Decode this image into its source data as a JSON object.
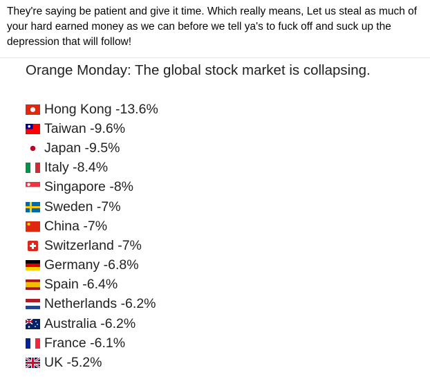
{
  "post": {
    "text": "They're saying be patient and give it time. Which really means, Let us steal as much of your hard earned money as we can before we tell ya's to fuck off and suck up the depression that will follow!"
  },
  "image": {
    "title": "Orange Monday: The global stock market is collapsing.",
    "items": [
      "Hong Kong -13.6%",
      "Taiwan -9.6%",
      "Japan -9.5%",
      "Italy -8.4%",
      "Singapore -8%",
      "Sweden -7%",
      "China -7%",
      "Switzerland -7%",
      "Germany -6.8%",
      "Spain -6.4%",
      "Netherlands -6.2%",
      "Australia -6.2%",
      "France -6.1%",
      "UK -5.2%"
    ]
  }
}
